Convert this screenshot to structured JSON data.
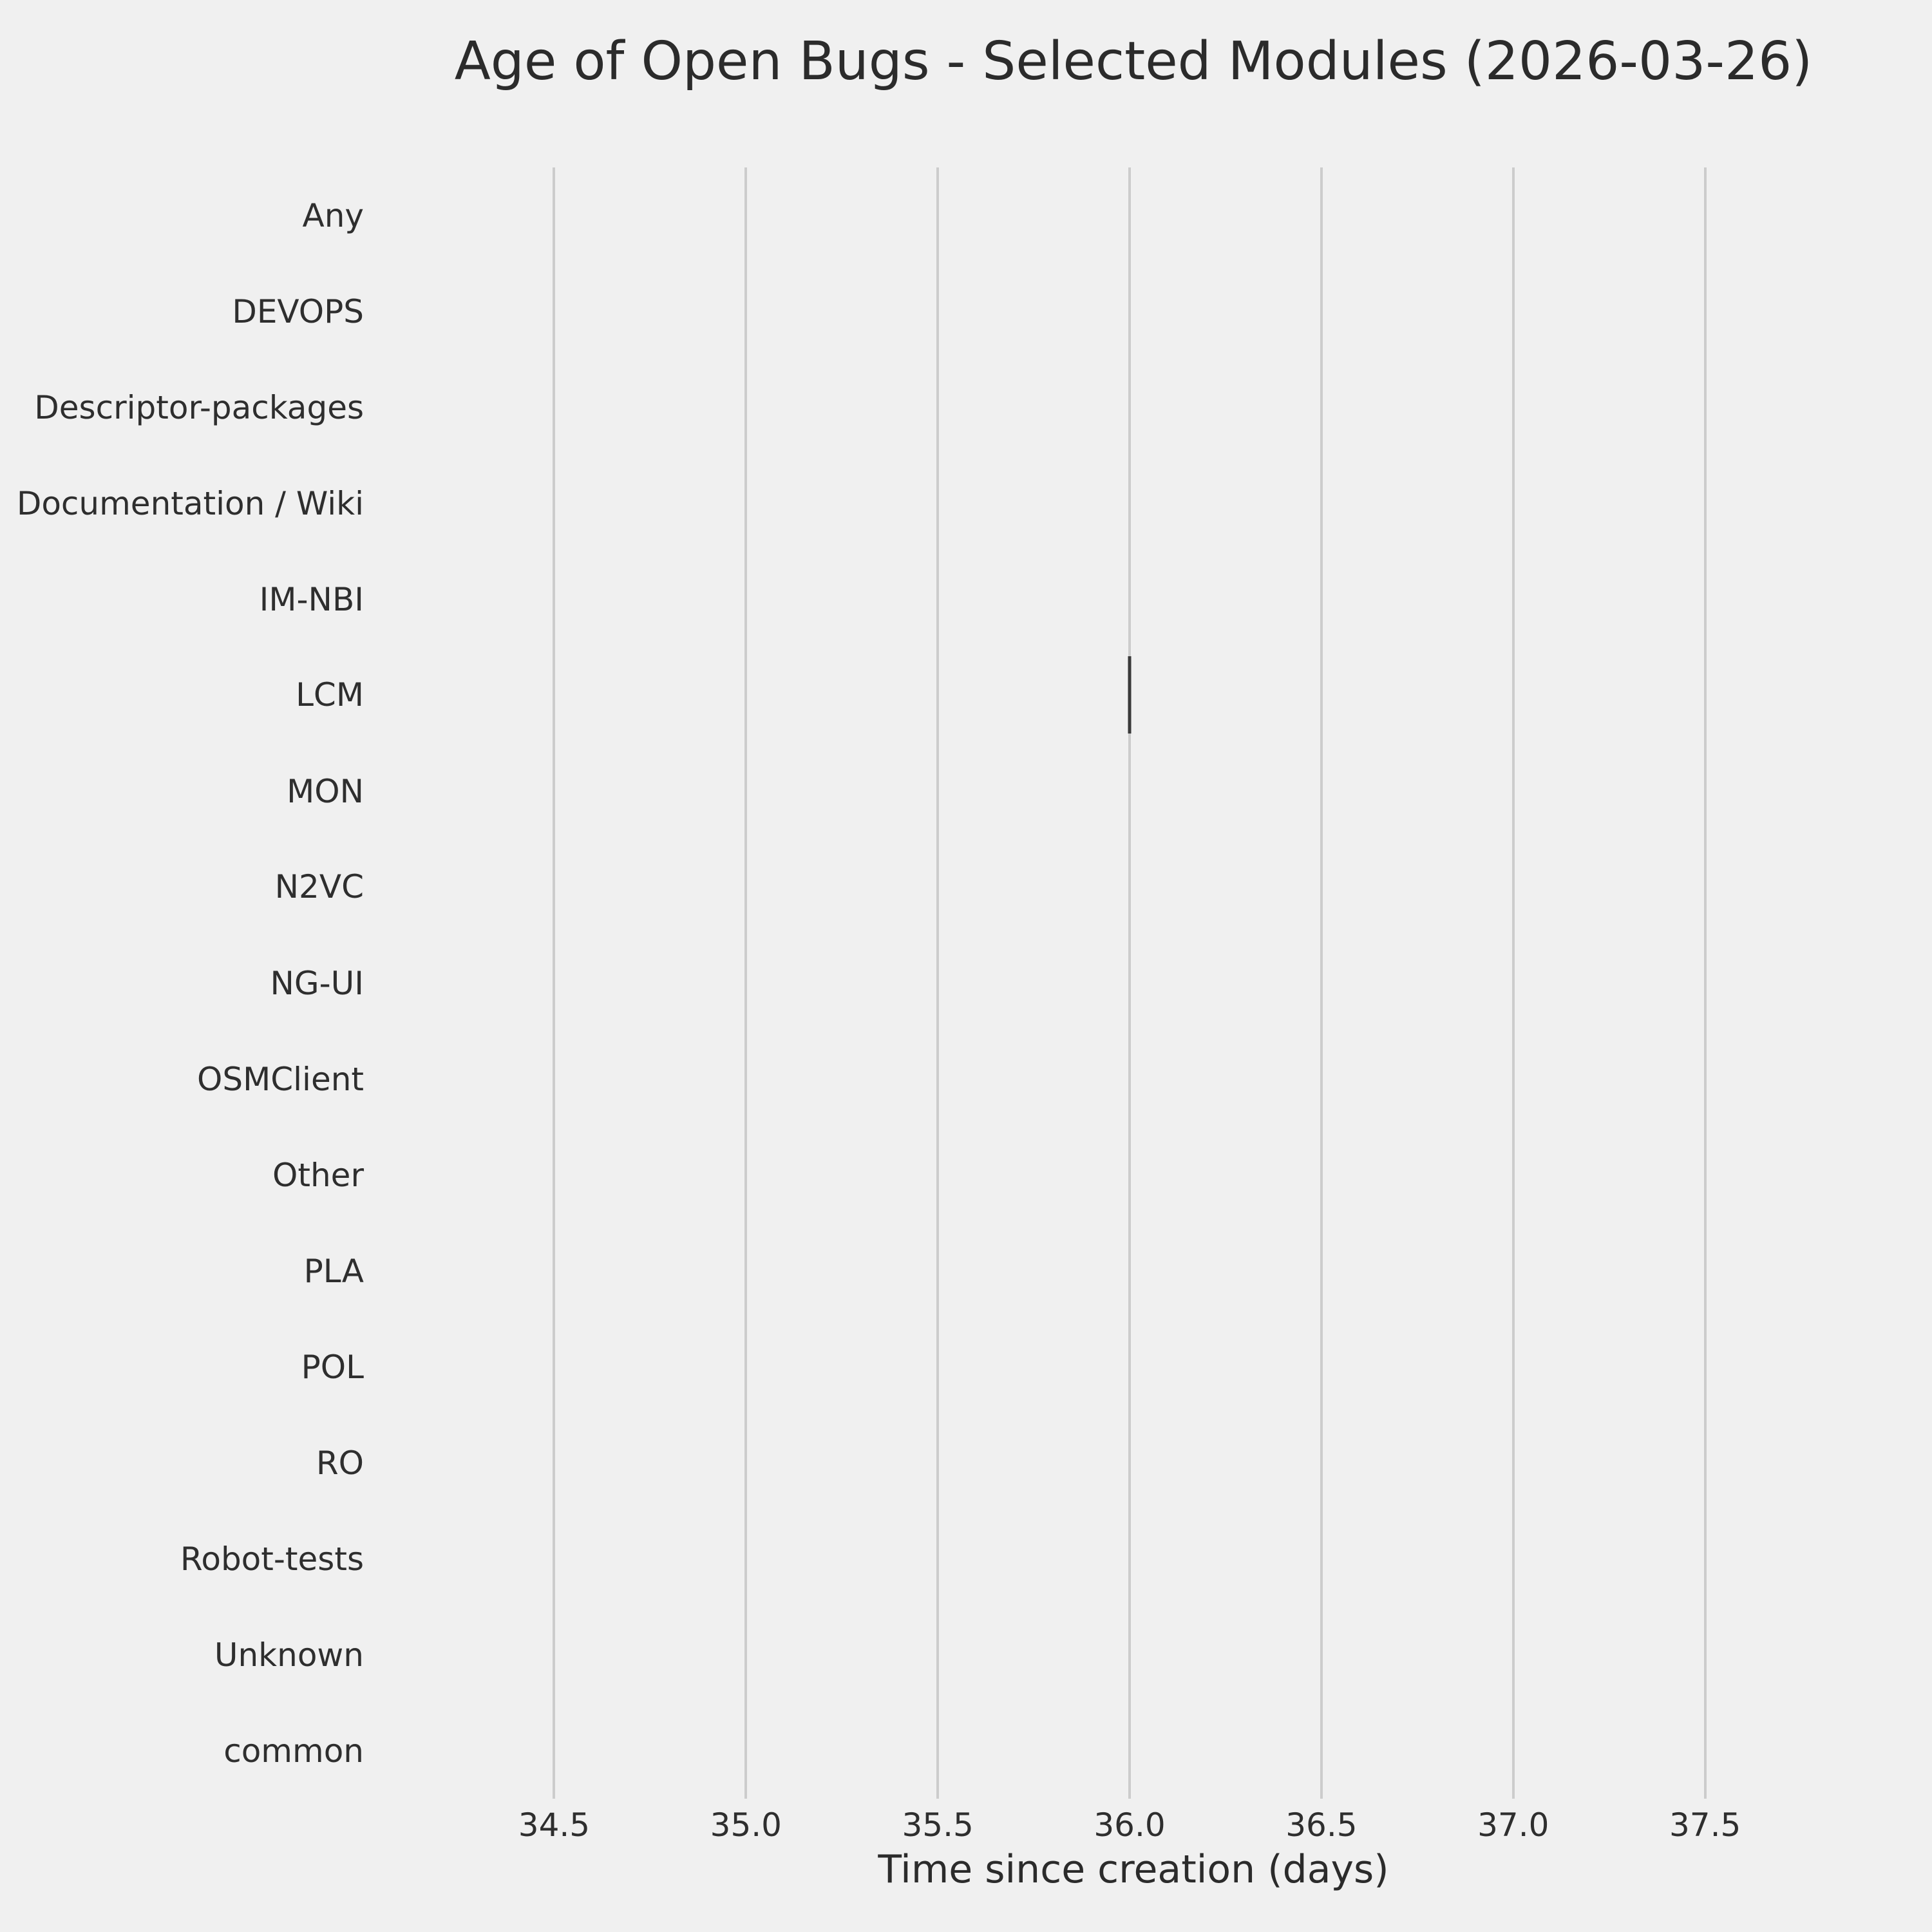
{
  "colors": {
    "background": "#f0f0f0",
    "grid": "#cccccc",
    "box_line": "#3a3a3a",
    "text": "#2b2b2b"
  },
  "chart_data": {
    "type": "boxplot",
    "orientation": "horizontal",
    "title": "Age of Open Bugs - Selected Modules (2026-03-26)",
    "xlabel": "Time since creation (days)",
    "categories": [
      "Any",
      "DEVOPS",
      "Descriptor-packages",
      "Documentation / Wiki",
      "IM-NBI",
      "LCM",
      "MON",
      "N2VC",
      "NG-UI",
      "OSMClient",
      "Other",
      "PLA",
      "POL",
      "RO",
      "Robot-tests",
      "Unknown",
      "common"
    ],
    "xticks": [
      "34.5",
      "35.0",
      "35.5",
      "36.0",
      "36.5",
      "37.0",
      "37.5"
    ],
    "xlim": [
      34.13,
      37.89
    ],
    "grid": "vertical-only",
    "legend": "none",
    "boxes": [
      {
        "category": "LCM",
        "whislo": 36.0,
        "q1": 36.0,
        "med": 36.0,
        "q3": 36.0,
        "whishi": 36.0
      }
    ]
  }
}
